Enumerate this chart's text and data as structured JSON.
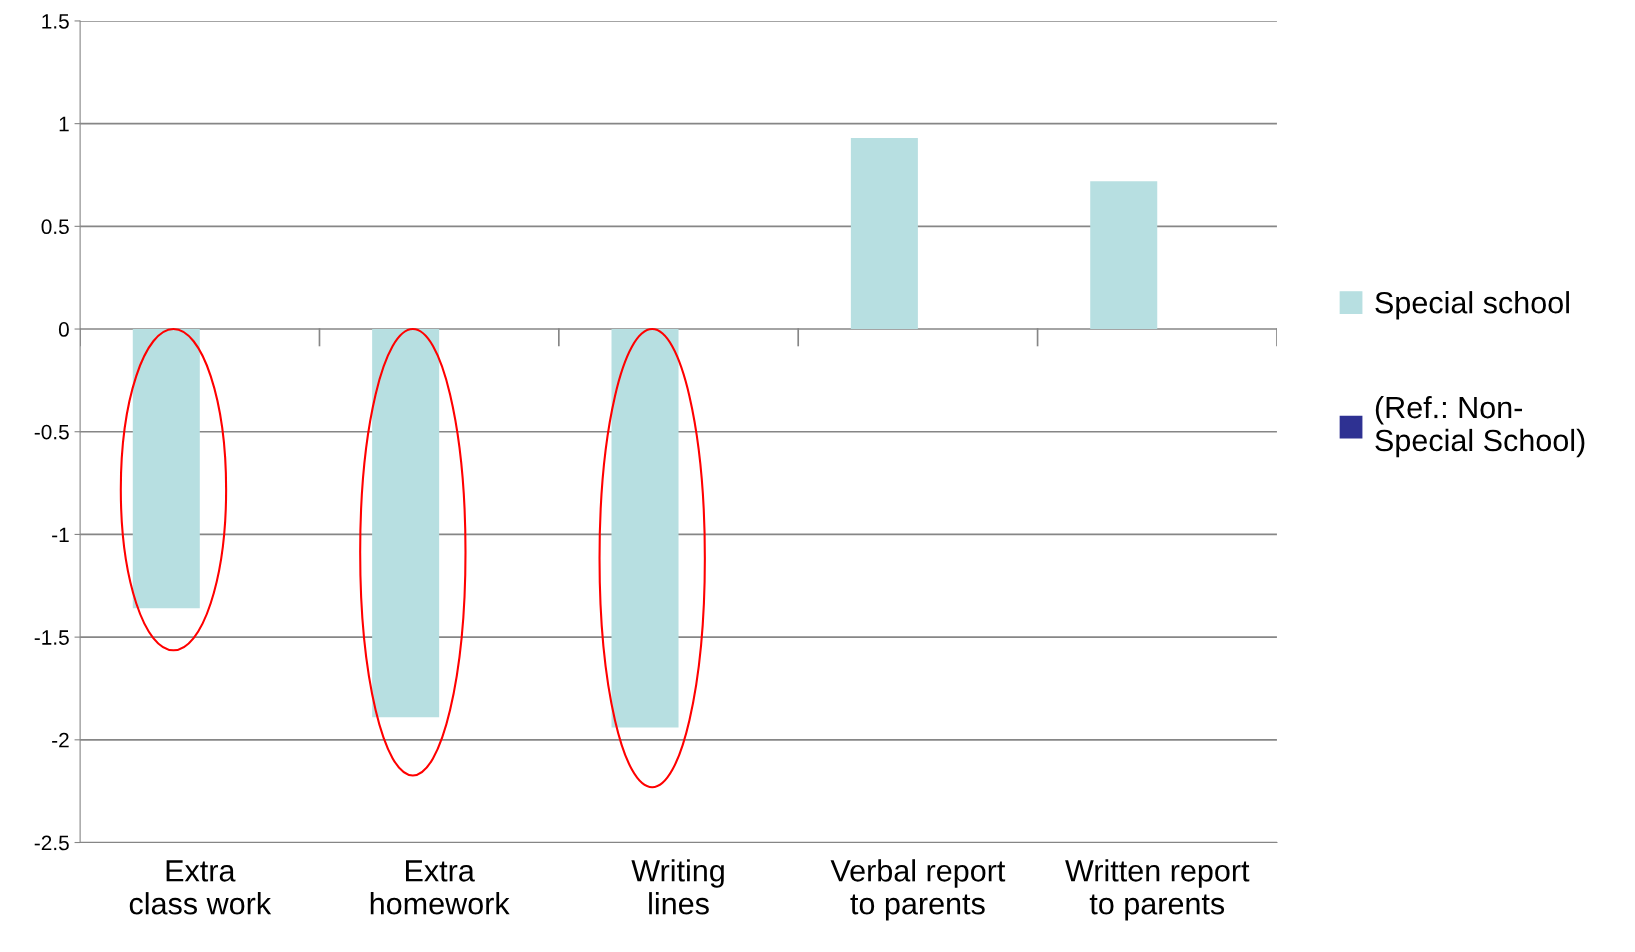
{
  "chart_data": {
    "type": "bar",
    "categories": [
      "Extra class work",
      "Extra homework",
      "Writing lines",
      "Verbal report to parents",
      "Written report to parents"
    ],
    "series": [
      {
        "name": "Special school",
        "color": "#b7dfe1",
        "values": [
          -1.36,
          -1.89,
          -1.94,
          0.93,
          0.72
        ]
      },
      {
        "name": "(Ref.: Non-Special School)",
        "color": "#2e3192",
        "values": [
          0,
          0,
          0,
          0,
          0
        ]
      }
    ],
    "ylim": [
      -2.5,
      1.5
    ],
    "yticks": [
      {
        "value": -2.5,
        "label": "-2.5"
      },
      {
        "value": -2,
        "label": "-2"
      },
      {
        "value": -1.5,
        "label": "-1.5"
      },
      {
        "value": -1,
        "label": "-1"
      },
      {
        "value": -0.5,
        "label": "-0.5"
      },
      0,
      0.5,
      1,
      1.5
    ],
    "grid": "y",
    "legend": "right"
  }
}
